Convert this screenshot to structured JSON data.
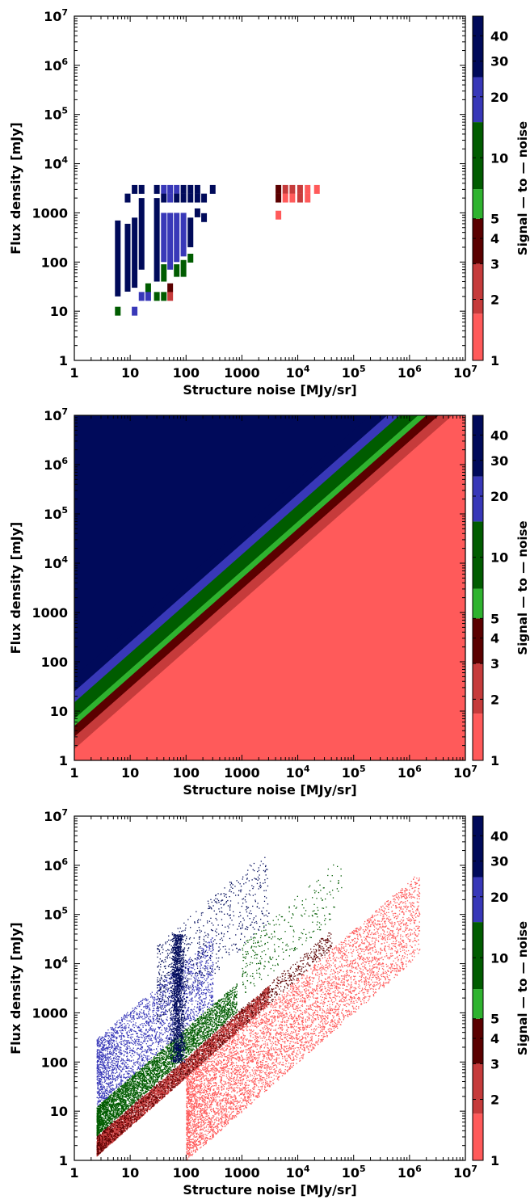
{
  "colors": {
    "snr_bands": [
      "#ff5a5a",
      "#c63b3b",
      "#5b0000",
      "#2fb32f",
      "#005c00",
      "#3838b8",
      "#000a5a"
    ]
  },
  "colorbar": {
    "label": "Signal — to — noise",
    "ticks": [
      1,
      2,
      3,
      4,
      5,
      10,
      20,
      30,
      40
    ],
    "tick_labels": [
      "1",
      "2",
      "3",
      "4",
      "5",
      "10",
      "20",
      "30",
      "40"
    ],
    "band_edges": [
      1,
      1.7,
      3,
      5,
      7,
      15,
      25,
      50
    ]
  },
  "chart_data": [
    {
      "type": "heatmap",
      "panel": "top",
      "xlabel": "Structure noise [MJy/sr]",
      "ylabel": "Flux density [mJy]",
      "x_scale": "log",
      "y_scale": "log",
      "xlim": [
        1,
        10000000
      ],
      "ylim": [
        1,
        10000000
      ],
      "x_tick_labels": [
        "1",
        "10",
        "100",
        "1000",
        "10^4",
        "10^5",
        "10^6",
        "10^7"
      ],
      "y_tick_labels": [
        "1",
        "10",
        "100",
        "1000",
        "10^4",
        "10^5",
        "10^6",
        "10^7"
      ],
      "value_label": "Signal — to — noise",
      "grid": false,
      "cells": [
        {
          "x": 6,
          "y_range": [
            20,
            700
          ],
          "snr": 45
        },
        {
          "x": 6,
          "y": 10,
          "snr": 12
        },
        {
          "x": 9,
          "y_range": [
            25,
            600
          ],
          "snr": 45
        },
        {
          "x": 9,
          "y": 2000,
          "snr": 45
        },
        {
          "x": 12,
          "y": 3000,
          "snr": 45
        },
        {
          "x": 12,
          "y_range": [
            30,
            800
          ],
          "snr": 45
        },
        {
          "x": 12,
          "y": 10,
          "snr": 22
        },
        {
          "x": 16,
          "y_range": [
            70,
            2000
          ],
          "snr": 45
        },
        {
          "x": 16,
          "y": 3000,
          "snr": 45
        },
        {
          "x": 16,
          "y": 20,
          "snr": 22
        },
        {
          "x": 21,
          "y": 30,
          "snr": 12
        },
        {
          "x": 21,
          "y": 20,
          "snr": 22
        },
        {
          "x": 30,
          "y_range": [
            40,
            2000
          ],
          "snr": 45
        },
        {
          "x": 30,
          "y": 3000,
          "snr": 45
        },
        {
          "x": 30,
          "y": 20,
          "snr": 7
        },
        {
          "x": 40,
          "y_range": [
            100,
            1000
          ],
          "snr": 22
        },
        {
          "x": 40,
          "y_range": [
            40,
            90
          ],
          "snr": 12
        },
        {
          "x": 40,
          "y": 3000,
          "snr": 22
        },
        {
          "x": 40,
          "y": 2000,
          "snr": 45
        },
        {
          "x": 40,
          "y": 20,
          "snr": 7
        },
        {
          "x": 52,
          "y_range": [
            70,
            1000
          ],
          "snr": 22
        },
        {
          "x": 52,
          "y": 3000,
          "snr": 22
        },
        {
          "x": 52,
          "y": 2000,
          "snr": 22
        },
        {
          "x": 52,
          "y": 30,
          "snr": 4
        },
        {
          "x": 52,
          "y": 20,
          "snr": 2.2
        },
        {
          "x": 68,
          "y_range": [
            100,
            1000
          ],
          "snr": 22
        },
        {
          "x": 68,
          "y_range": [
            50,
            90
          ],
          "snr": 7
        },
        {
          "x": 68,
          "y": 3000,
          "snr": 22
        },
        {
          "x": 68,
          "y": 2000,
          "snr": 45
        },
        {
          "x": 90,
          "y_range": [
            130,
            1000
          ],
          "snr": 22
        },
        {
          "x": 90,
          "y_range": [
            50,
            110
          ],
          "snr": 12
        },
        {
          "x": 90,
          "y": 3000,
          "snr": 45
        },
        {
          "x": 90,
          "y": 2000,
          "snr": 45
        },
        {
          "x": 120,
          "y_range": [
            200,
            800
          ],
          "snr": 45
        },
        {
          "x": 120,
          "y": 120,
          "snr": 12
        },
        {
          "x": 120,
          "y": 3000,
          "snr": 45
        },
        {
          "x": 120,
          "y": 2000,
          "snr": 45
        },
        {
          "x": 160,
          "y": 3000,
          "snr": 45
        },
        {
          "x": 160,
          "y": 2000,
          "snr": 45
        },
        {
          "x": 160,
          "y": 1000,
          "snr": 45
        },
        {
          "x": 210,
          "y": 2000,
          "snr": 45
        },
        {
          "x": 210,
          "y": 800,
          "snr": 45
        },
        {
          "x": 300,
          "y": 3000,
          "snr": 45
        },
        {
          "x": 4500,
          "y": 3000,
          "snr": 4
        },
        {
          "x": 4500,
          "y": 2000,
          "snr": 4
        },
        {
          "x": 4500,
          "y": 900,
          "snr": 1.3
        },
        {
          "x": 6000,
          "y": 3000,
          "snr": 2.2
        },
        {
          "x": 6000,
          "y": 2000,
          "snr": 1.3
        },
        {
          "x": 8000,
          "y": 3000,
          "snr": 2.2
        },
        {
          "x": 8000,
          "y": 2000,
          "snr": 1.3
        },
        {
          "x": 11000,
          "y": 3000,
          "snr": 2.2
        },
        {
          "x": 11000,
          "y": 2000,
          "snr": 2.2
        },
        {
          "x": 15000,
          "y": 3000,
          "snr": 1.3
        },
        {
          "x": 15000,
          "y": 2000,
          "snr": 1.3
        },
        {
          "x": 22000,
          "y": 3000,
          "snr": 1.3
        }
      ]
    },
    {
      "type": "heatmap",
      "panel": "middle",
      "xlabel": "Structure noise [MJy/sr]",
      "ylabel": "Flux density [mJy]",
      "x_scale": "log",
      "y_scale": "log",
      "xlim": [
        1,
        10000000
      ],
      "ylim": [
        1,
        10000000
      ],
      "x_tick_labels": [
        "1",
        "10",
        "100",
        "1000",
        "10^4",
        "10^5",
        "10^6",
        "10^7"
      ],
      "y_tick_labels": [
        "1",
        "10",
        "100",
        "1000",
        "10^4",
        "10^5",
        "10^6",
        "10^7"
      ],
      "value_label": "Signal — to — noise",
      "grid": false,
      "relation": "signal-to-noise = flux density / structure noise",
      "band_edges": [
        1,
        1.7,
        3,
        5,
        7,
        15,
        25,
        50
      ]
    },
    {
      "type": "scatter",
      "panel": "bottom",
      "xlabel": "Structure noise [MJy/sr]",
      "ylabel": "Flux density [mJy]",
      "x_scale": "log",
      "y_scale": "log",
      "xlim": [
        1,
        10000000
      ],
      "ylim": [
        1,
        10000000
      ],
      "x_tick_labels": [
        "1",
        "10",
        "100",
        "1000",
        "10^4",
        "10^5",
        "10^6",
        "10^7"
      ],
      "y_tick_labels": [
        "1",
        "10",
        "100",
        "1000",
        "10^4",
        "10^5",
        "10^6",
        "10^7"
      ],
      "value_label": "Signal — to — noise",
      "grid": false,
      "point_groups": [
        {
          "x_range": [
            2.5,
            3000
          ],
          "ratio_range": [
            0.5,
            1.2
          ],
          "snr": 2.2,
          "approx_points": 5000
        },
        {
          "x_range": [
            2.5,
            40000
          ],
          "ratio_range": [
            0.5,
            1.3
          ],
          "snr": 4,
          "approx_points": 1500
        },
        {
          "x_range": [
            100,
            1500000
          ],
          "ratio_range": [
            0.01,
            0.5
          ],
          "snr": 1.3,
          "approx_points": 6000
        },
        {
          "x_range": [
            2.5,
            800
          ],
          "ratio_range": [
            1.3,
            5
          ],
          "snr": 10,
          "approx_points": 4000
        },
        {
          "x_range": [
            1000,
            60000
          ],
          "ratio_range": [
            2,
            25
          ],
          "snr": 10,
          "approx_points": 300
        },
        {
          "x_range": [
            2.5,
            300
          ],
          "ratio_range": [
            5,
            120
          ],
          "snr": 20,
          "approx_points": 2500
        },
        {
          "x_range": [
            30,
            3000
          ],
          "ratio_range": [
            20,
            800
          ],
          "snr": 45,
          "approx_points": 700
        },
        {
          "x": 70,
          "y_range": [
            100,
            40000
          ],
          "snr": 45,
          "approx_points": 1500,
          "note": "dense vertical stripe"
        }
      ]
    }
  ]
}
